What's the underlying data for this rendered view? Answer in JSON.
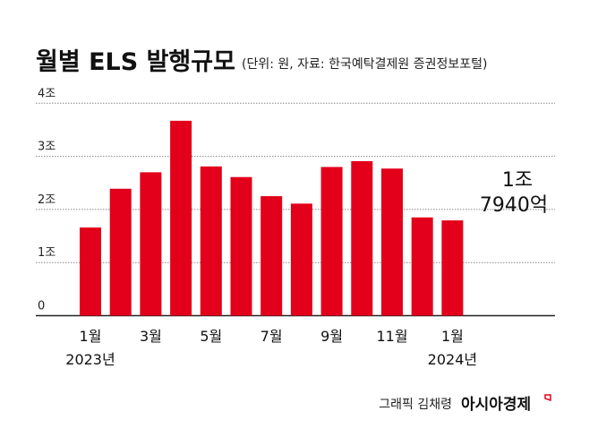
{
  "chart_data": {
    "type": "bar",
    "title": "월별 ELS 발행규모",
    "subtitle": "(단위: 원, 자료: 한국예탁결제원 증권정보포털)",
    "categories": [
      "2023-01",
      "2023-02",
      "2023-03",
      "2023-04",
      "2023-05",
      "2023-06",
      "2023-07",
      "2023-08",
      "2023-09",
      "2023-10",
      "2023-11",
      "2023-12",
      "2024-01"
    ],
    "values": [
      1.66,
      2.39,
      2.7,
      3.67,
      2.81,
      2.61,
      2.25,
      2.11,
      2.8,
      2.91,
      2.77,
      1.85,
      1.794
    ],
    "unit": "조",
    "ylim": [
      0,
      4
    ],
    "yticks": [
      {
        "value": 0,
        "label": "0"
      },
      {
        "value": 1,
        "label": "1조"
      },
      {
        "value": 2,
        "label": "2조"
      },
      {
        "value": 3,
        "label": "3조"
      },
      {
        "value": 4,
        "label": "4조"
      }
    ],
    "xticks": [
      {
        "index": 0,
        "label": "1월",
        "sub": "2023년"
      },
      {
        "index": 2,
        "label": "3월",
        "sub": ""
      },
      {
        "index": 4,
        "label": "5월",
        "sub": ""
      },
      {
        "index": 6,
        "label": "7월",
        "sub": ""
      },
      {
        "index": 8,
        "label": "9월",
        "sub": ""
      },
      {
        "index": 10,
        "label": "11월",
        "sub": ""
      },
      {
        "index": 12,
        "label": "1월",
        "sub": "2024년"
      }
    ],
    "annotation": {
      "index": 12,
      "line1": "1조",
      "line2": "7940억"
    },
    "grid": true,
    "bar_color": "#e2001a"
  },
  "credit": {
    "artist": "그래픽 김채령",
    "brand": "아시아경제"
  }
}
